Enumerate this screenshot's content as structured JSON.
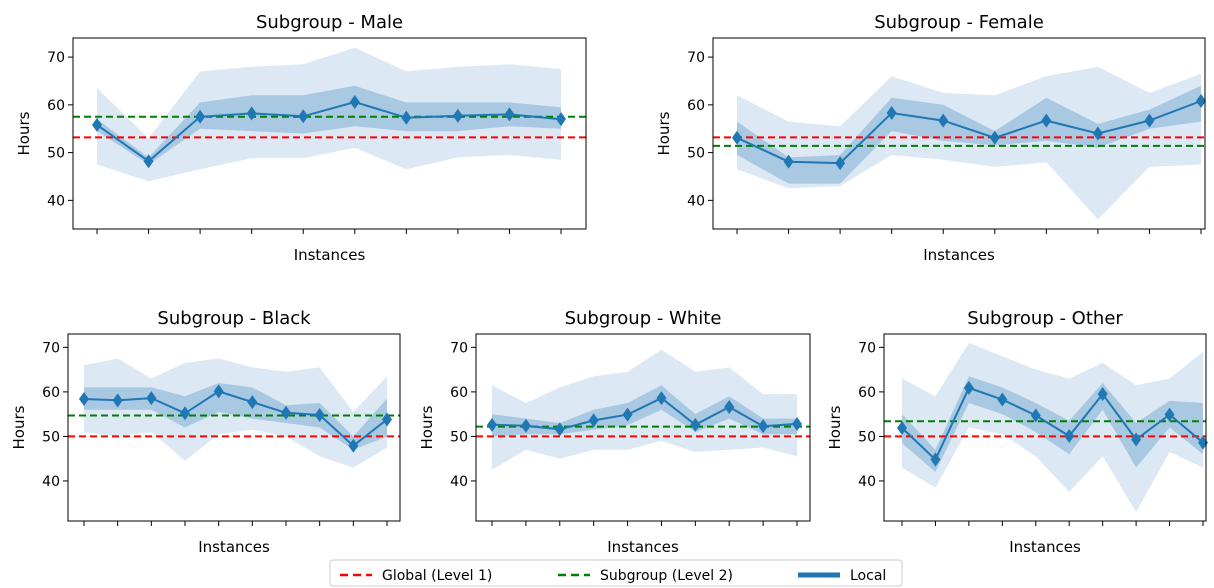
{
  "legend": {
    "global_label": "Global (Level 1)",
    "subgroup_label": "Subgroup (Level 2)",
    "local_label": "Local"
  },
  "colors": {
    "global": "#ff0000",
    "subgroup": "#008000",
    "local": "#1f77b4",
    "band_outer": "#dce9f5",
    "band_inner": "#a9c8e2"
  },
  "chart_data": [
    {
      "type": "line",
      "title": "Subgroup - Male",
      "xlabel": "Instances",
      "ylabel": "Hours",
      "ylim": [
        34,
        74
      ],
      "yticks": [
        40,
        50,
        60,
        70
      ],
      "x": [
        1,
        2,
        3,
        4,
        5,
        6,
        7,
        8,
        9,
        10
      ],
      "global": 53.2,
      "subgroup": 57.5,
      "series": [
        {
          "name": "Local",
          "values": [
            55.8,
            48.2,
            57.5,
            58.2,
            57.6,
            60.6,
            57.3,
            57.7,
            58.0,
            57.0
          ],
          "inner_lower": [
            54.5,
            47.5,
            55.0,
            54.5,
            54.0,
            55.5,
            54.5,
            54.5,
            55.5,
            55.0
          ],
          "inner_upper": [
            57.0,
            49.0,
            60.5,
            62.0,
            62.0,
            64.0,
            60.5,
            60.5,
            60.5,
            59.5
          ],
          "outer_lower": [
            47.5,
            44.0,
            46.5,
            48.8,
            48.8,
            51.0,
            46.5,
            49.0,
            49.5,
            48.5
          ],
          "outer_upper": [
            63.5,
            53.0,
            67.0,
            68.0,
            68.5,
            72.0,
            67.0,
            68.0,
            68.5,
            67.5
          ]
        }
      ]
    },
    {
      "type": "line",
      "title": "Subgroup - Female",
      "xlabel": "Instances",
      "ylabel": "Hours",
      "ylim": [
        34,
        74
      ],
      "yticks": [
        40,
        50,
        60,
        70
      ],
      "x": [
        1,
        2,
        3,
        4,
        5,
        6,
        7,
        8,
        9,
        10
      ],
      "global": 53.2,
      "subgroup": 51.4,
      "series": [
        {
          "name": "Local",
          "values": [
            53.1,
            48.1,
            47.8,
            58.3,
            56.7,
            53.1,
            56.7,
            54.0,
            56.7,
            60.8
          ],
          "inner_lower": [
            49.5,
            43.5,
            43.5,
            54.5,
            52.5,
            51.5,
            52.5,
            51.0,
            55.0,
            56.5
          ],
          "inner_upper": [
            56.5,
            49.0,
            49.5,
            61.5,
            60.0,
            54.5,
            61.5,
            56.0,
            59.0,
            64.0
          ],
          "outer_lower": [
            46.5,
            42.5,
            43.0,
            49.5,
            48.5,
            47.0,
            48.0,
            36.0,
            47.0,
            47.5
          ],
          "outer_upper": [
            62.0,
            56.5,
            55.5,
            66.0,
            62.5,
            62.0,
            66.0,
            68.0,
            62.5,
            66.5
          ]
        }
      ]
    },
    {
      "type": "line",
      "title": "Subgroup - Black",
      "xlabel": "Instances",
      "ylabel": "Hours",
      "ylim": [
        31,
        73
      ],
      "yticks": [
        40,
        50,
        60,
        70
      ],
      "x": [
        1,
        2,
        3,
        4,
        5,
        6,
        7,
        8,
        9,
        10
      ],
      "global": 50.0,
      "subgroup": 54.7,
      "series": [
        {
          "name": "Local",
          "values": [
            58.4,
            58.1,
            58.6,
            55.2,
            60.1,
            57.7,
            55.3,
            54.8,
            47.9,
            53.8
          ],
          "inner_lower": [
            56.0,
            56.0,
            56.0,
            52.0,
            55.5,
            54.0,
            53.0,
            52.0,
            47.0,
            50.0
          ],
          "inner_upper": [
            61.0,
            61.0,
            61.0,
            59.0,
            62.0,
            61.0,
            57.0,
            57.5,
            50.0,
            58.5
          ],
          "outer_lower": [
            51.0,
            50.0,
            51.0,
            44.5,
            50.5,
            51.5,
            50.0,
            45.5,
            43.0,
            47.5
          ],
          "outer_upper": [
            66.0,
            67.5,
            63.0,
            66.5,
            67.5,
            65.5,
            64.5,
            65.5,
            55.5,
            63.5
          ]
        }
      ]
    },
    {
      "type": "line",
      "title": "Subgroup - White",
      "xlabel": "Instances",
      "ylabel": "Hours",
      "ylim": [
        31,
        73
      ],
      "yticks": [
        40,
        50,
        60,
        70
      ],
      "x": [
        1,
        2,
        3,
        4,
        5,
        6,
        7,
        8,
        9,
        10
      ],
      "global": 50.0,
      "subgroup": 52.2,
      "series": [
        {
          "name": "Local",
          "values": [
            52.6,
            52.4,
            51.6,
            53.6,
            54.9,
            58.6,
            52.6,
            56.6,
            52.3,
            52.8
          ],
          "inner_lower": [
            50.0,
            50.5,
            50.5,
            51.5,
            52.5,
            56.0,
            51.0,
            54.0,
            50.5,
            50.5
          ],
          "inner_upper": [
            55.0,
            54.0,
            53.0,
            56.0,
            57.5,
            61.5,
            55.0,
            59.0,
            54.0,
            54.0
          ],
          "outer_lower": [
            42.5,
            47.0,
            45.0,
            47.0,
            47.0,
            49.0,
            46.5,
            47.0,
            47.5,
            45.5
          ],
          "outer_upper": [
            61.5,
            57.5,
            61.0,
            63.5,
            64.5,
            69.5,
            64.5,
            65.5,
            59.5,
            59.5
          ]
        }
      ]
    },
    {
      "type": "line",
      "title": "Subgroup - Other",
      "xlabel": "Instances",
      "ylabel": "Hours",
      "ylim": [
        31,
        73
      ],
      "yticks": [
        40,
        50,
        60,
        70
      ],
      "x": [
        1,
        2,
        3,
        4,
        5,
        6,
        7,
        8,
        9,
        10
      ],
      "global": 50.0,
      "subgroup": 53.4,
      "series": [
        {
          "name": "Local",
          "values": [
            51.9,
            44.8,
            60.9,
            58.3,
            54.7,
            50.1,
            59.5,
            49.3,
            54.9,
            48.6
          ],
          "inner_lower": [
            48.5,
            42.0,
            57.5,
            55.0,
            51.0,
            46.0,
            56.0,
            43.0,
            52.0,
            46.0
          ],
          "inner_upper": [
            55.0,
            47.0,
            63.5,
            61.0,
            57.5,
            53.5,
            62.0,
            53.0,
            58.0,
            57.5
          ],
          "outer_lower": [
            43.0,
            38.5,
            52.0,
            50.5,
            45.5,
            37.5,
            45.5,
            33.0,
            46.5,
            43.0
          ],
          "outer_upper": [
            63.0,
            59.0,
            71.0,
            68.0,
            65.0,
            63.0,
            66.5,
            61.5,
            63.0,
            69.0
          ]
        }
      ]
    }
  ]
}
